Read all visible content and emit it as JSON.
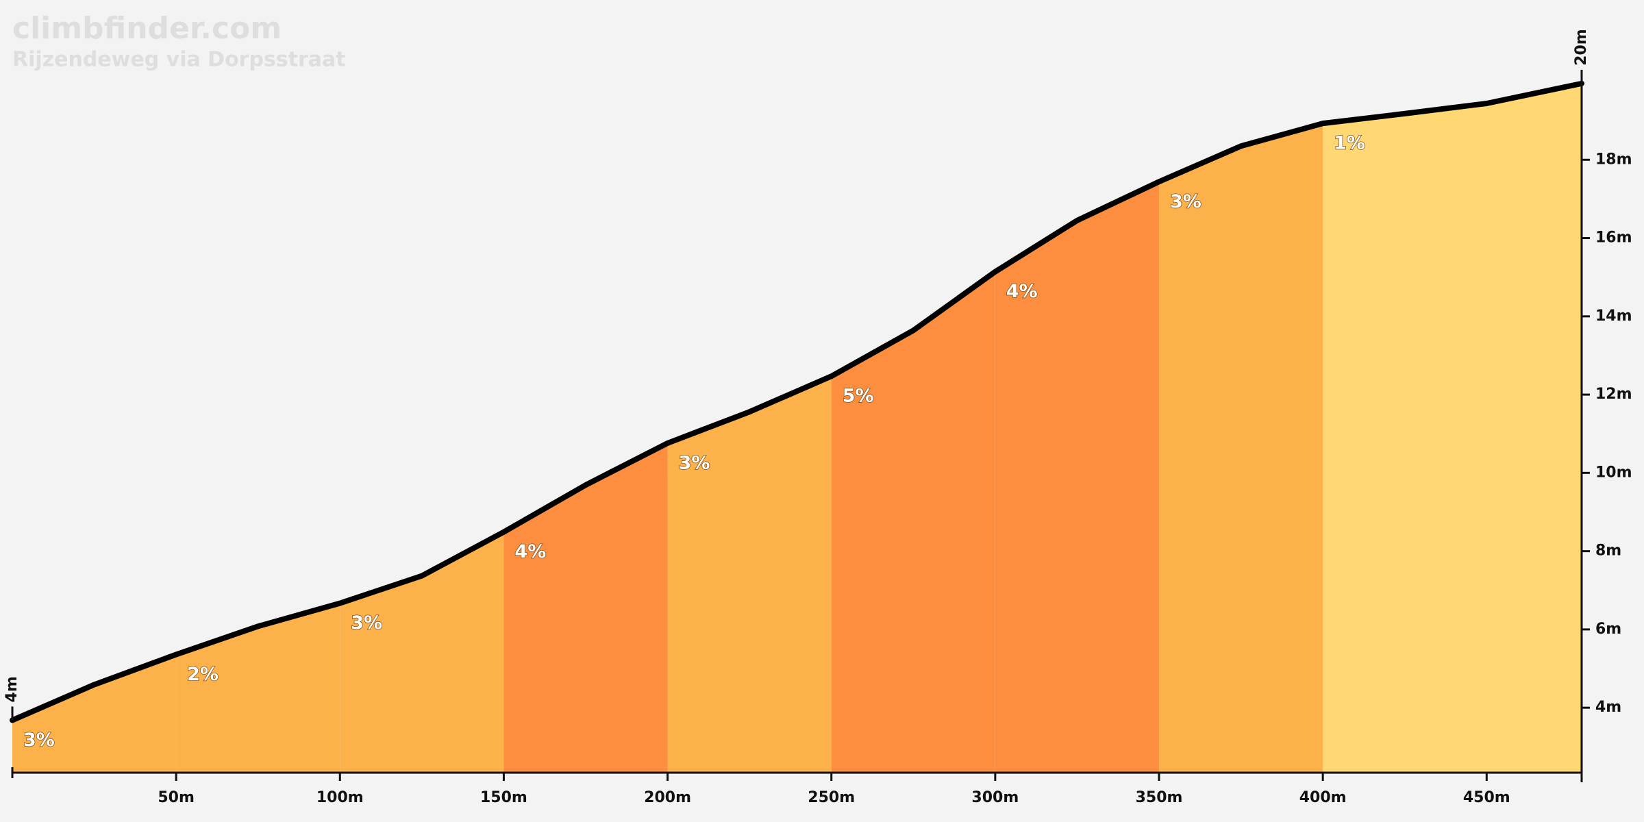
{
  "chart_data": {
    "type": "elevation-profile",
    "title": "climbfinder.com",
    "subtitle": "Rijzendeweg via Dorpsstraat",
    "distance": [
      0,
      25,
      50,
      75,
      100,
      125,
      150,
      175,
      200,
      225,
      250,
      275,
      300,
      325,
      350,
      375,
      400,
      425,
      450,
      479
    ],
    "elevation": [
      3.68,
      4.59,
      5.36,
      6.08,
      6.67,
      7.37,
      8.49,
      9.69,
      10.76,
      11.56,
      12.47,
      13.64,
      15.14,
      16.45,
      17.44,
      18.35,
      18.93,
      19.18,
      19.44,
      19.95
    ],
    "line_color": "#000000",
    "segments": [
      {
        "start": 0,
        "end": 50,
        "grade": 3,
        "grade_label": "3%",
        "color": "#fdb14b"
      },
      {
        "start": 50,
        "end": 100,
        "grade": 2,
        "grade_label": "2%",
        "color": "#fdb14b"
      },
      {
        "start": 100,
        "end": 150,
        "grade": 3,
        "grade_label": "3%",
        "color": "#fdb14b"
      },
      {
        "start": 150,
        "end": 200,
        "grade": 4,
        "grade_label": "4%",
        "color": "#fd8e3f"
      },
      {
        "start": 200,
        "end": 250,
        "grade": 3,
        "grade_label": "3%",
        "color": "#fdb14b"
      },
      {
        "start": 250,
        "end": 300,
        "grade": 5,
        "grade_label": "5%",
        "color": "#fd8e3f"
      },
      {
        "start": 300,
        "end": 350,
        "grade": 4,
        "grade_label": "4%",
        "color": "#fd8e3f"
      },
      {
        "start": 350,
        "end": 400,
        "grade": 3,
        "grade_label": "3%",
        "color": "#fdb14b"
      },
      {
        "start": 400,
        "end": 479,
        "grade": 1,
        "grade_label": "1%",
        "color": "#ffd773"
      }
    ],
    "start_elevation": {
      "value": 3.68,
      "label": "4m"
    },
    "end_elevation": {
      "value": 19.95,
      "label": "20m"
    },
    "xlim": [
      0,
      479
    ],
    "ylim": [
      2.34,
      20
    ],
    "xticks": [
      {
        "value": 50,
        "label": "50m"
      },
      {
        "value": 100,
        "label": "100m"
      },
      {
        "value": 150,
        "label": "150m"
      },
      {
        "value": 200,
        "label": "200m"
      },
      {
        "value": 250,
        "label": "250m"
      },
      {
        "value": 300,
        "label": "300m"
      },
      {
        "value": 350,
        "label": "350m"
      },
      {
        "value": 400,
        "label": "400m"
      },
      {
        "value": 450,
        "label": "450m"
      }
    ],
    "yticks": [
      {
        "value": 4,
        "label": "4m"
      },
      {
        "value": 6,
        "label": "6m"
      },
      {
        "value": 8,
        "label": "8m"
      },
      {
        "value": 10,
        "label": "10m"
      },
      {
        "value": 12,
        "label": "12m"
      },
      {
        "value": 14,
        "label": "14m"
      },
      {
        "value": 16,
        "label": "16m"
      },
      {
        "value": 18,
        "label": "18m"
      }
    ]
  }
}
